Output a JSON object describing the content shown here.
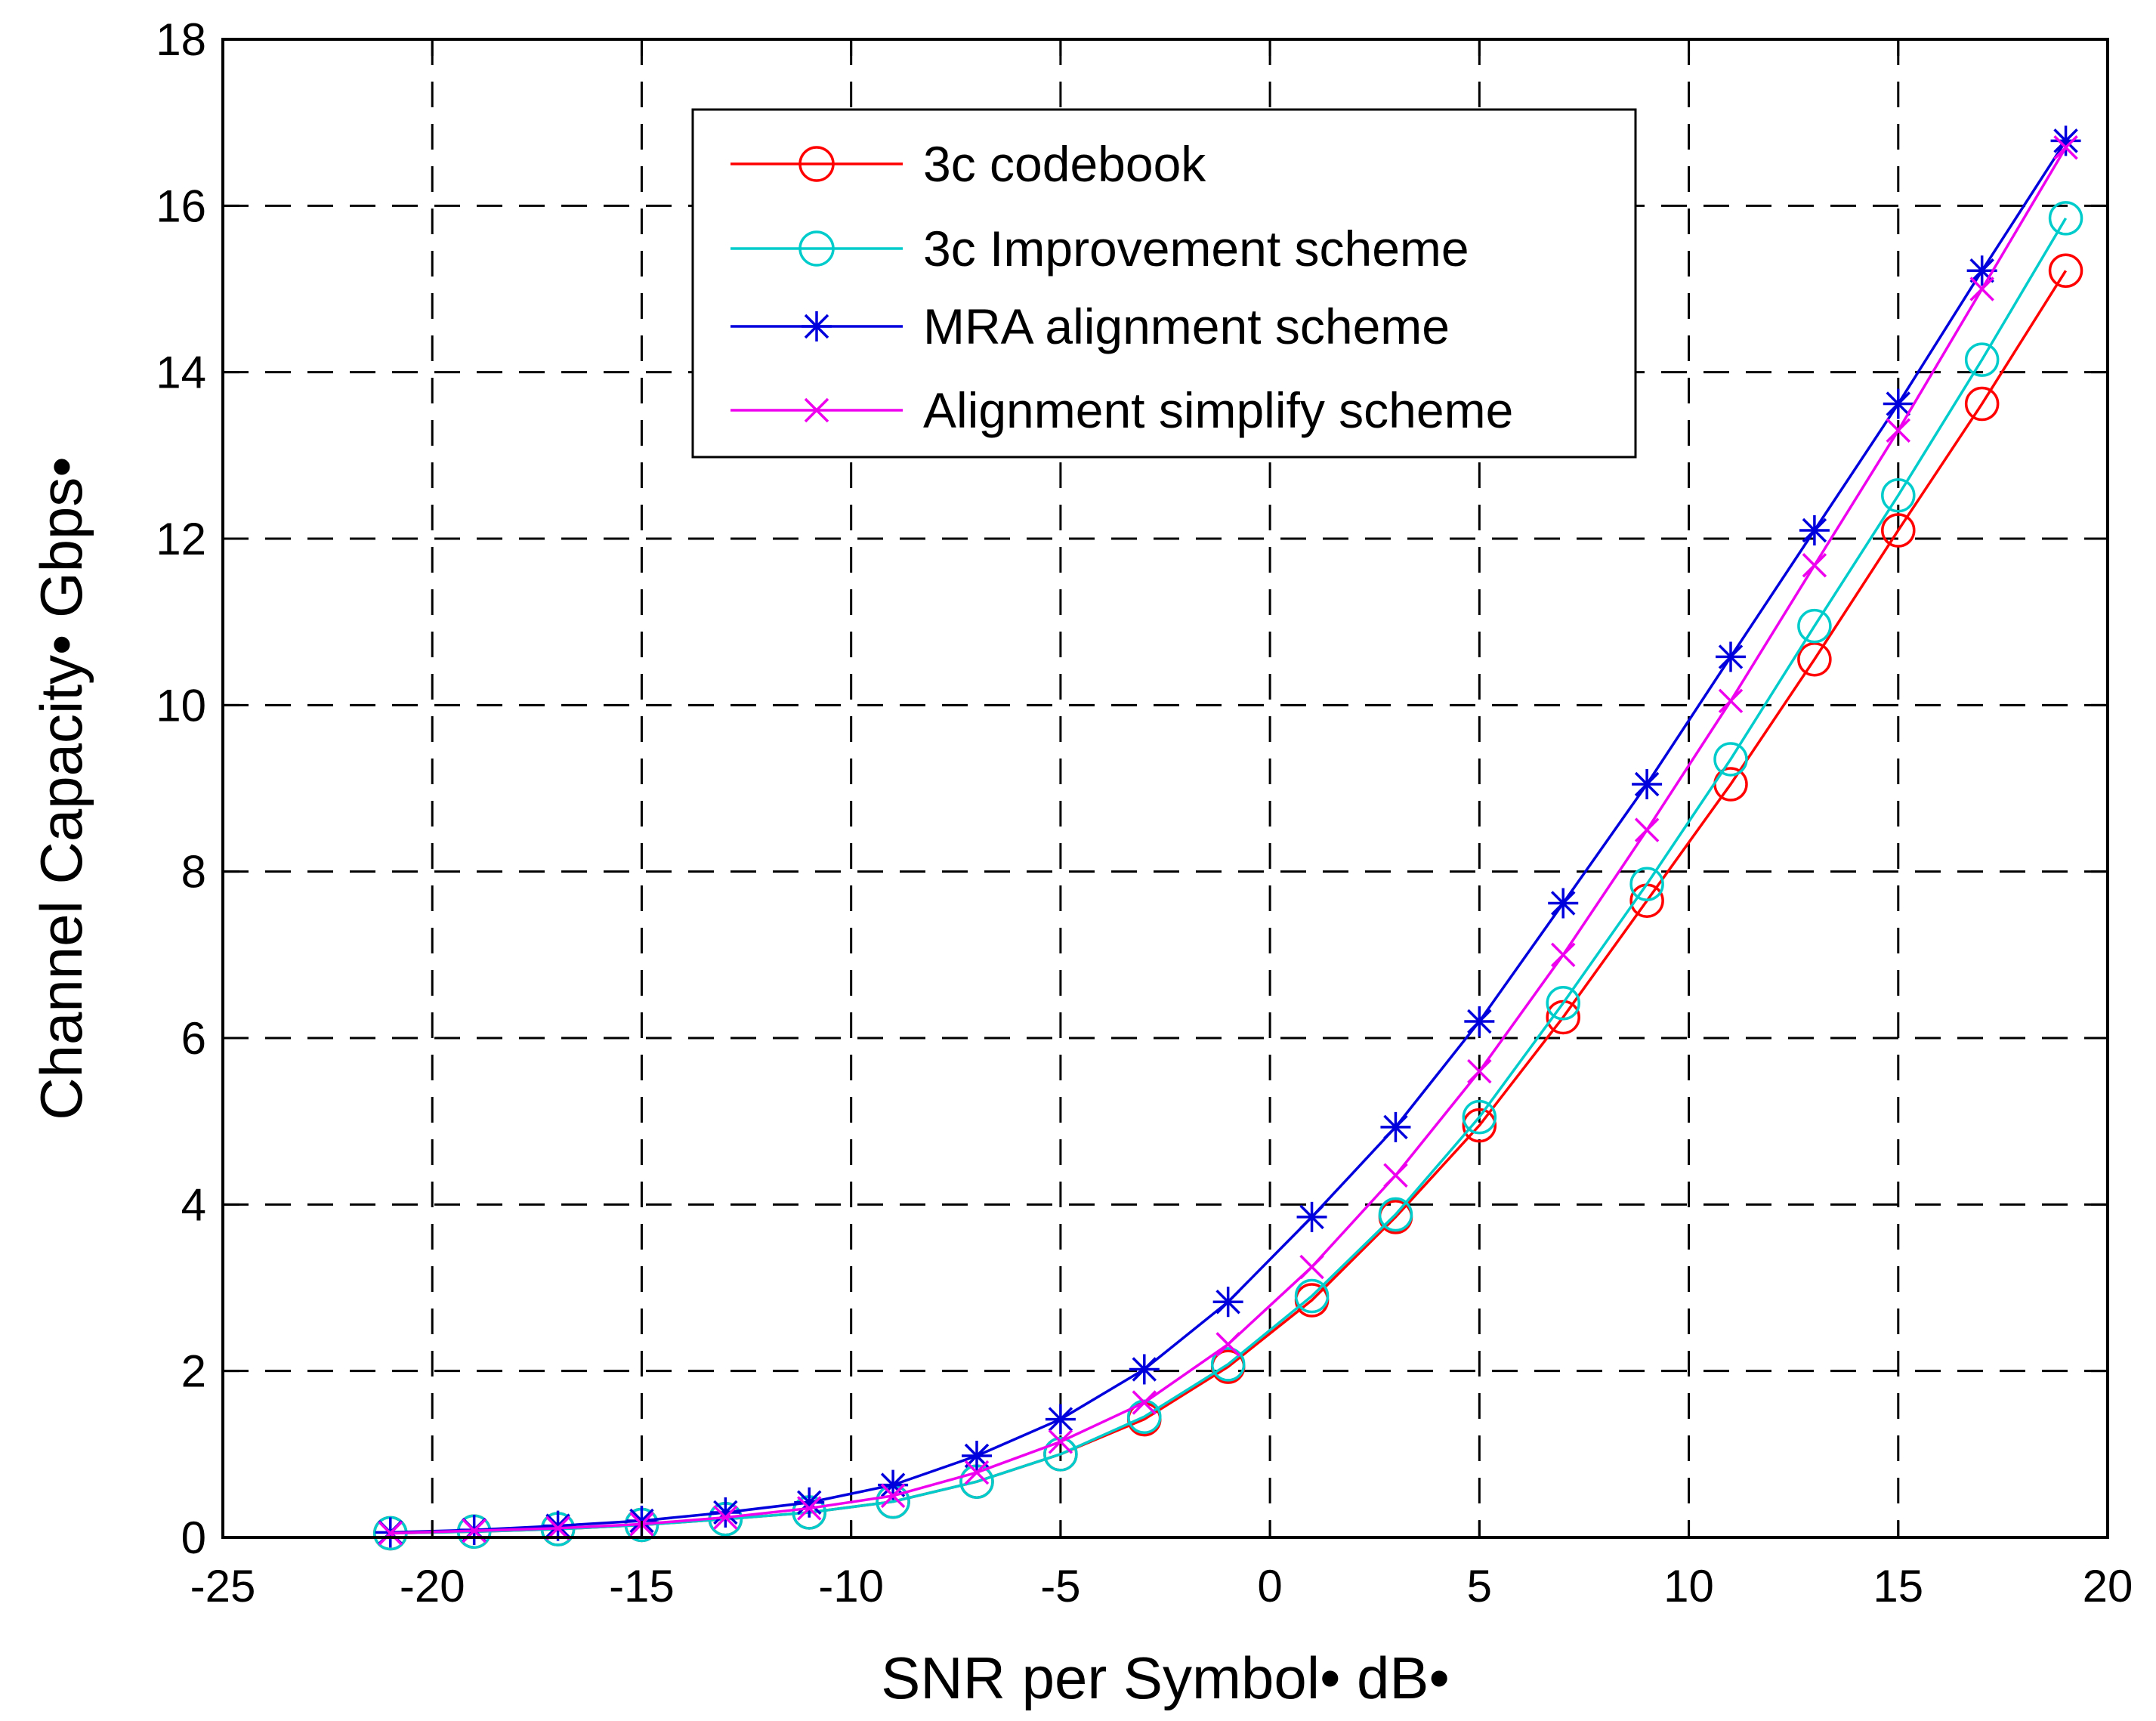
{
  "chart_data": {
    "type": "line",
    "title": "",
    "xlabel": "SNR per Symbol•  dB•",
    "ylabel": "Channel Capacity•  Gbps•",
    "xlim": [
      -25,
      20
    ],
    "ylim": [
      0,
      18
    ],
    "xticks": [
      -25,
      -20,
      -15,
      -10,
      -5,
      0,
      5,
      10,
      15,
      20
    ],
    "yticks": [
      0,
      2,
      4,
      6,
      8,
      10,
      12,
      14,
      16,
      18
    ],
    "grid": true,
    "legend_position": "top-center",
    "x": [
      -21,
      -19,
      -17,
      -15,
      -13,
      -11,
      -9,
      -7,
      -5,
      -3,
      -1,
      1,
      3,
      5,
      7,
      9,
      11,
      13,
      15,
      17,
      19
    ],
    "series": [
      {
        "name": "3c codebook",
        "color": "#ff0000",
        "marker": "circle",
        "values": [
          0.05,
          0.07,
          0.1,
          0.15,
          0.22,
          0.3,
          0.43,
          0.67,
          1.0,
          1.42,
          2.05,
          2.85,
          3.85,
          4.95,
          6.25,
          7.65,
          9.05,
          10.55,
          12.1,
          13.62,
          15.22
        ]
      },
      {
        "name": "3c Improvement scheme",
        "color": "#00cccc",
        "marker": "circle",
        "values": [
          0.05,
          0.07,
          0.1,
          0.15,
          0.22,
          0.3,
          0.43,
          0.67,
          1.0,
          1.45,
          2.08,
          2.9,
          3.88,
          5.05,
          6.42,
          7.85,
          9.35,
          10.95,
          12.52,
          14.15,
          15.85
        ]
      },
      {
        "name": "MRA alignment scheme",
        "color": "#0000dd",
        "marker": "asterisk",
        "values": [
          0.06,
          0.09,
          0.14,
          0.2,
          0.3,
          0.42,
          0.63,
          0.98,
          1.42,
          2.02,
          2.83,
          3.85,
          4.93,
          6.2,
          7.62,
          9.05,
          10.58,
          12.1,
          13.62,
          15.22,
          16.78
        ]
      },
      {
        "name": "Alignment simplify scheme",
        "color": "#ee00ee",
        "marker": "x",
        "values": [
          0.05,
          0.08,
          0.11,
          0.16,
          0.24,
          0.35,
          0.5,
          0.78,
          1.15,
          1.62,
          2.32,
          3.25,
          4.35,
          5.6,
          7.0,
          8.5,
          10.05,
          11.68,
          13.3,
          15.0,
          16.7
        ]
      }
    ]
  }
}
